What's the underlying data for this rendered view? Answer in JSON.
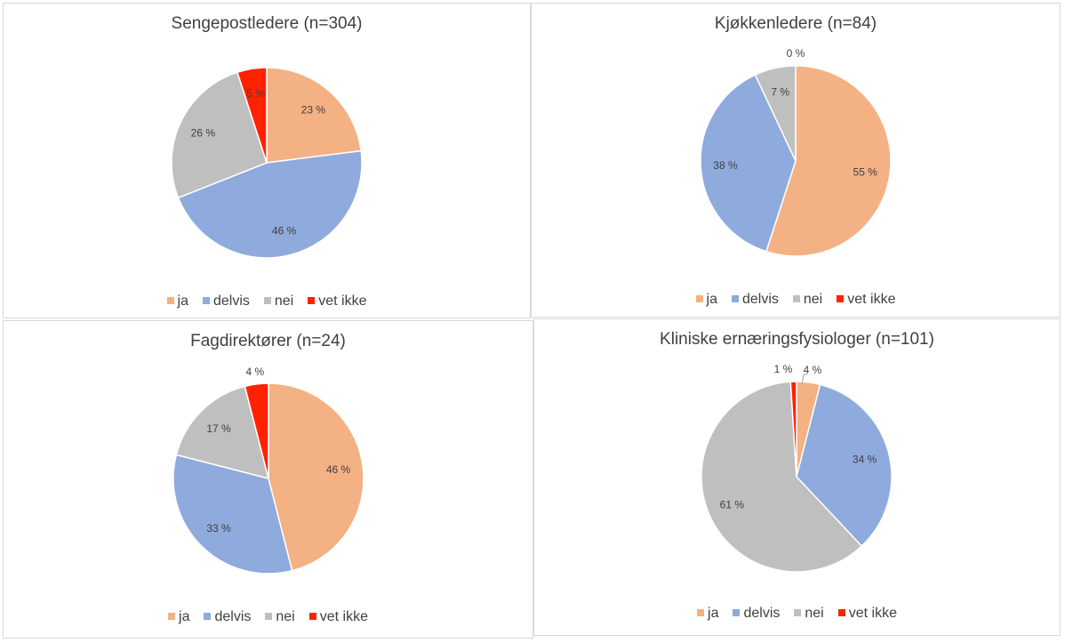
{
  "chart_data": [
    {
      "type": "pie",
      "title": "Sengepostledere (n=304)",
      "categories": [
        "ja",
        "delvis",
        "nei",
        "vet ikke"
      ],
      "values": [
        23,
        46,
        26,
        5
      ],
      "labels": [
        "23 %",
        "46 %",
        "26 %",
        "5 %"
      ],
      "legend": "bottom"
    },
    {
      "type": "pie",
      "title": "Kjøkkenledere (n=84)",
      "categories": [
        "ja",
        "delvis",
        "nei",
        "vet ikke"
      ],
      "values": [
        55,
        38,
        7,
        0
      ],
      "labels": [
        "55 %",
        "38 %",
        "7 %",
        "0 %"
      ],
      "legend": "bottom"
    },
    {
      "type": "pie",
      "title": "Fagdirektører (n=24)",
      "categories": [
        "ja",
        "delvis",
        "nei",
        "vet ikke"
      ],
      "values": [
        46,
        33,
        17,
        4
      ],
      "labels": [
        "46 %",
        "33 %",
        "17 %",
        "4 %"
      ],
      "legend": "bottom"
    },
    {
      "type": "pie",
      "title": "Kliniske ernæringsfysiologer (n=101)",
      "categories": [
        "ja",
        "delvis",
        "nei",
        "vet ikke"
      ],
      "values": [
        4,
        34,
        61,
        1
      ],
      "labels": [
        "4 %",
        "34 %",
        "61 %",
        "1 %"
      ],
      "legend": "bottom"
    }
  ],
  "colors": {
    "ja": "#F4B183",
    "delvis": "#8FAADC",
    "nei": "#BFBFBF",
    "vet ikke": "#FF2200"
  }
}
